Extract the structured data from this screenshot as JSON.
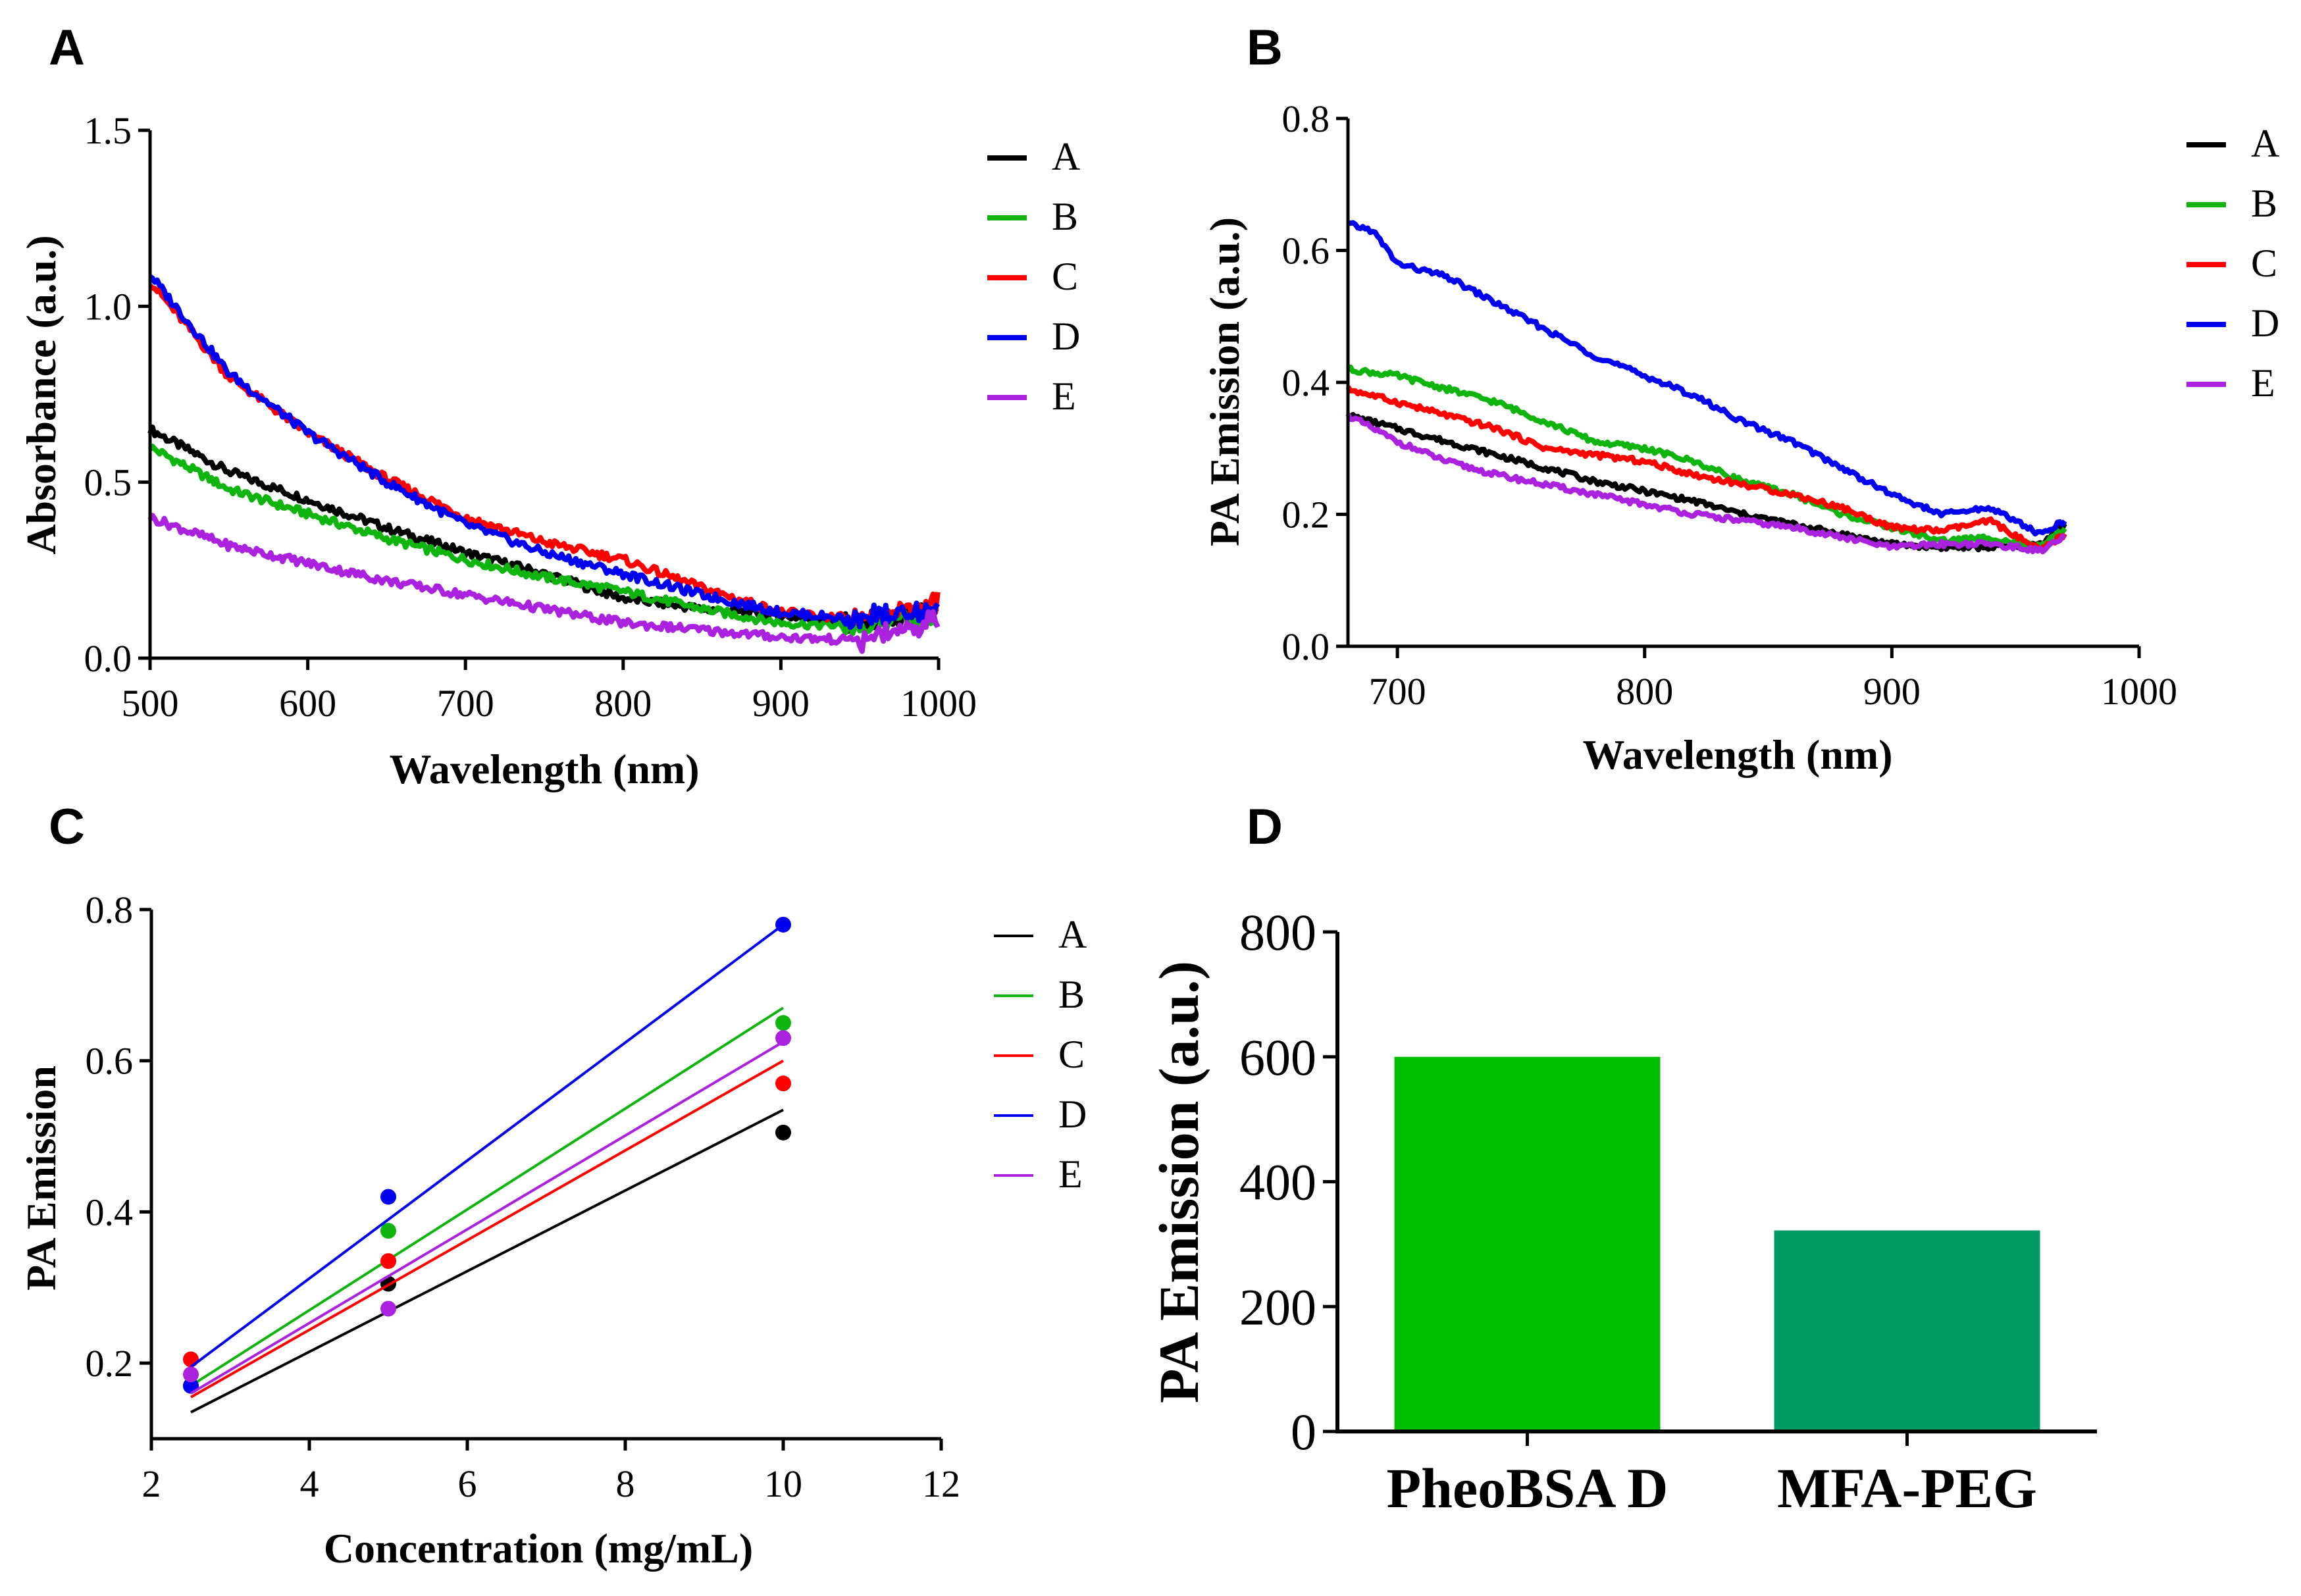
{
  "chart_data": [
    {
      "panel": "A",
      "type": "line",
      "xlabel": "Wavelength (nm)",
      "ylabel": "Absorbance (a.u.)",
      "xlim": [
        500,
        1000
      ],
      "ylim": [
        0.0,
        1.5
      ],
      "xticks": [
        500,
        600,
        700,
        800,
        900,
        1000
      ],
      "xtick_labels": [
        "500",
        "600",
        "700",
        "800",
        "900",
        "1000"
      ],
      "yticks": [
        0.0,
        0.5,
        1.0,
        1.5
      ],
      "ytick_labels": [
        "0.0",
        "0.5",
        "1.0",
        "1.5"
      ],
      "legend": "right",
      "series": [
        {
          "name": "A",
          "color": "#000000",
          "x": [
            500,
            550,
            600,
            650,
            700,
            750,
            800,
            850,
            900,
            950,
            1000
          ],
          "values": [
            0.65,
            0.53,
            0.45,
            0.37,
            0.3,
            0.24,
            0.17,
            0.14,
            0.12,
            0.1,
            0.13
          ]
        },
        {
          "name": "B",
          "color": "#0fb40f",
          "x": [
            500,
            550,
            600,
            650,
            700,
            750,
            800,
            850,
            900,
            950,
            1000
          ],
          "values": [
            0.6,
            0.48,
            0.41,
            0.34,
            0.28,
            0.23,
            0.19,
            0.14,
            0.1,
            0.09,
            0.12
          ]
        },
        {
          "name": "C",
          "color": "#ff0000",
          "x": [
            500,
            550,
            600,
            650,
            700,
            750,
            800,
            850,
            900,
            950,
            1000
          ],
          "values": [
            1.07,
            0.8,
            0.64,
            0.51,
            0.4,
            0.33,
            0.28,
            0.2,
            0.13,
            0.11,
            0.16
          ]
        },
        {
          "name": "D",
          "color": "#0000ee",
          "x": [
            500,
            550,
            600,
            650,
            700,
            750,
            800,
            850,
            900,
            950,
            1000
          ],
          "values": [
            1.09,
            0.81,
            0.64,
            0.5,
            0.38,
            0.3,
            0.24,
            0.18,
            0.13,
            0.11,
            0.14
          ]
        },
        {
          "name": "E",
          "color": "#aa22dd",
          "x": [
            500,
            550,
            600,
            650,
            700,
            750,
            800,
            850,
            900,
            950,
            1000
          ],
          "values": [
            0.4,
            0.32,
            0.27,
            0.22,
            0.18,
            0.14,
            0.1,
            0.08,
            0.06,
            0.05,
            0.11
          ]
        }
      ]
    },
    {
      "panel": "B",
      "type": "line",
      "xlabel": "Wavelength (nm)",
      "ylabel": "PA Emission (a.u.)",
      "xlim": [
        680,
        1000
      ],
      "ylim": [
        0.0,
        0.8
      ],
      "xticks": [
        700,
        800,
        900,
        1000
      ],
      "xtick_labels": [
        "700",
        "800",
        "900",
        "1000"
      ],
      "yticks": [
        0.0,
        0.2,
        0.4,
        0.6,
        0.8
      ],
      "ytick_labels": [
        "0.0",
        "0.2",
        "0.4",
        "0.6",
        "0.8"
      ],
      "legend": "right",
      "series": [
        {
          "name": "A",
          "color": "#000000",
          "x": [
            680,
            700,
            720,
            740,
            760,
            780,
            800,
            820,
            840,
            860,
            880,
            900,
            920,
            940,
            960,
            970
          ],
          "values": [
            0.35,
            0.33,
            0.31,
            0.29,
            0.27,
            0.25,
            0.235,
            0.22,
            0.2,
            0.185,
            0.17,
            0.155,
            0.15,
            0.15,
            0.155,
            0.185
          ]
        },
        {
          "name": "B",
          "color": "#0fb40f",
          "x": [
            680,
            700,
            720,
            740,
            760,
            780,
            800,
            820,
            840,
            860,
            880,
            900,
            920,
            940,
            960,
            970
          ],
          "values": [
            0.42,
            0.41,
            0.39,
            0.37,
            0.34,
            0.31,
            0.3,
            0.28,
            0.25,
            0.23,
            0.2,
            0.18,
            0.16,
            0.165,
            0.15,
            0.18
          ]
        },
        {
          "name": "C",
          "color": "#ff0000",
          "x": [
            680,
            700,
            720,
            740,
            760,
            780,
            800,
            820,
            840,
            860,
            880,
            900,
            920,
            940,
            960,
            970
          ],
          "values": [
            0.39,
            0.37,
            0.35,
            0.33,
            0.3,
            0.29,
            0.28,
            0.26,
            0.245,
            0.23,
            0.21,
            0.18,
            0.175,
            0.19,
            0.145,
            0.17
          ]
        },
        {
          "name": "D",
          "color": "#0000ee",
          "x": [
            680,
            690,
            700,
            720,
            740,
            760,
            780,
            800,
            820,
            840,
            860,
            880,
            900,
            920,
            940,
            960,
            970
          ],
          "values": [
            0.64,
            0.63,
            0.58,
            0.56,
            0.52,
            0.48,
            0.44,
            0.41,
            0.38,
            0.34,
            0.31,
            0.27,
            0.23,
            0.2,
            0.21,
            0.17,
            0.19
          ]
        },
        {
          "name": "E",
          "color": "#aa22dd",
          "x": [
            680,
            700,
            720,
            740,
            760,
            780,
            800,
            820,
            840,
            860,
            880,
            900,
            920,
            940,
            960,
            970
          ],
          "values": [
            0.35,
            0.31,
            0.28,
            0.26,
            0.245,
            0.23,
            0.215,
            0.2,
            0.19,
            0.18,
            0.165,
            0.15,
            0.155,
            0.155,
            0.145,
            0.165
          ]
        }
      ]
    },
    {
      "panel": "C",
      "type": "scatter",
      "xlabel": "Concentration (mg/mL)",
      "ylabel": "PA Emission",
      "xlim": [
        2,
        12
      ],
      "ylim": [
        0.1,
        0.8
      ],
      "xticks": [
        2,
        4,
        6,
        8,
        10,
        12
      ],
      "xtick_labels": [
        "2",
        "4",
        "6",
        "8",
        "10",
        "12"
      ],
      "yticks": [
        0.2,
        0.4,
        0.6,
        0.8
      ],
      "ytick_labels": [
        "0.2",
        "0.4",
        "0.6",
        "0.8"
      ],
      "legend": "right",
      "series": [
        {
          "name": "A",
          "color": "#000000",
          "x": [
            2.5,
            5,
            10
          ],
          "values": [
            0.17,
            0.305,
            0.505
          ],
          "fit": [
            [
              2.5,
              0.135
            ],
            [
              10,
              0.535
            ]
          ]
        },
        {
          "name": "B",
          "color": "#0fb40f",
          "x": [
            2.5,
            5,
            10
          ],
          "values": [
            0.17,
            0.375,
            0.65
          ],
          "fit": [
            [
              2.5,
              0.17
            ],
            [
              10,
              0.67
            ]
          ]
        },
        {
          "name": "C",
          "color": "#ff0000",
          "x": [
            2.5,
            5,
            10
          ],
          "values": [
            0.205,
            0.335,
            0.57
          ],
          "fit": [
            [
              2.5,
              0.155
            ],
            [
              10,
              0.6
            ]
          ]
        },
        {
          "name": "D",
          "color": "#0000ee",
          "x": [
            2.5,
            5,
            10
          ],
          "values": [
            0.17,
            0.42,
            0.78
          ],
          "fit": [
            [
              2.5,
              0.195
            ],
            [
              10,
              0.78
            ]
          ]
        },
        {
          "name": "E",
          "color": "#aa22dd",
          "x": [
            2.5,
            5,
            10
          ],
          "values": [
            0.185,
            0.272,
            0.63
          ],
          "fit": [
            [
              2.5,
              0.16
            ],
            [
              10,
              0.625
            ]
          ]
        }
      ]
    },
    {
      "panel": "D",
      "type": "bar",
      "xlabel": "",
      "ylabel": "PA Emission (a.u.)",
      "ylim": [
        0,
        800
      ],
      "yticks": [
        0,
        200,
        400,
        600,
        800
      ],
      "ytick_labels": [
        "0",
        "200",
        "400",
        "600",
        "800"
      ],
      "categories": [
        "PheoBSA D",
        "MFA-PEG"
      ],
      "values": [
        600,
        322
      ],
      "colors": [
        "#00bf00",
        "#009b64"
      ]
    }
  ]
}
